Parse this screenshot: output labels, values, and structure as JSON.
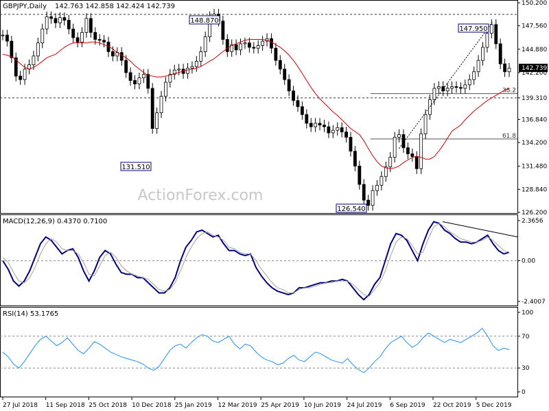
{
  "chart_data": [
    {
      "type": "candlestick",
      "panel": "price",
      "title": "GBPJPY,Daily",
      "ohlc_header": "142.763 142.858 142.424 142.739",
      "ylim": [
        126.2,
        150.2
      ],
      "yticks": [
        "150.200",
        "147.560",
        "144.880",
        "142.200",
        "139.310",
        "136.840",
        "134.200",
        "131.480",
        "128.840",
        "126.200"
      ],
      "last_price": "142.739",
      "watermark": "ActionForex.com",
      "levels": [
        {
          "label": "148.870",
          "value": 148.87,
          "style": "dashed"
        },
        {
          "label": "139.310",
          "value": 139.31,
          "style": "dashed"
        },
        {
          "label": "38.2",
          "value": 139.8,
          "style": "fib"
        },
        {
          "label": "61.8",
          "value": 134.6,
          "style": "fib"
        }
      ],
      "annotations": [
        "148.870",
        "131.510",
        "147.950",
        "126.540"
      ],
      "series": [
        {
          "name": "price",
          "values": [
            146.5,
            145.8,
            143.9,
            141.8,
            141.4,
            142.6,
            143.1,
            144.1,
            145.6,
            147.2,
            148.6,
            148.4,
            147.9,
            148.5,
            148.2,
            147.2,
            146.2,
            145.7,
            146.8,
            148.4,
            146.8,
            146.0,
            145.9,
            145.7,
            144.6,
            144.1,
            144.5,
            143.6,
            142.2,
            141.3,
            140.9,
            141.6,
            142.0,
            140.4,
            135.8,
            137.6,
            139.5,
            141.1,
            142.0,
            142.5,
            142.6,
            142.1,
            142.7,
            142.9,
            143.5,
            144.6,
            146.3,
            148.6,
            148.9,
            148.1,
            146.0,
            144.6,
            145.4,
            144.8,
            145.5,
            145.6,
            145.1,
            145.0,
            145.3,
            145.8,
            146.1,
            145.0,
            143.6,
            142.6,
            141.4,
            140.1,
            139.0,
            138.3,
            137.4,
            136.4,
            136.0,
            136.4,
            136.2,
            136.0,
            135.3,
            135.6,
            135.9,
            135.4,
            134.8,
            133.2,
            131.5,
            129.4,
            127.6,
            127.0,
            128.7,
            129.3,
            130.3,
            131.4,
            132.5,
            134.8,
            135.1,
            133.6,
            132.9,
            132.6,
            131.2,
            135.2,
            137.4,
            139.1,
            140.4,
            140.6,
            140.1,
            140.4,
            140.6,
            140.5,
            140.4,
            140.8,
            141.4,
            142.3,
            143.6,
            145.1,
            146.7,
            147.7,
            145.5,
            143.2,
            142.3,
            142.7
          ]
        },
        {
          "name": "MA",
          "values": [
            144.3,
            144.2,
            144.0,
            143.7,
            143.2,
            142.8,
            142.6,
            142.8,
            143.1,
            143.5,
            143.9,
            144.3,
            144.7,
            145.1,
            145.4,
            145.6,
            145.6,
            145.6,
            145.6,
            145.7,
            145.7,
            145.6,
            145.4,
            145.2,
            144.9,
            144.5,
            144.2,
            143.9,
            143.5,
            143.0,
            142.6,
            142.2,
            141.9,
            141.7,
            141.7,
            141.8,
            141.9,
            142.1,
            142.2,
            142.4,
            142.5,
            142.6,
            142.7,
            142.9,
            143.2,
            143.5,
            143.8,
            144.2,
            144.6,
            145.0,
            145.3,
            145.5,
            145.7,
            145.9,
            146.0,
            146.0,
            146.0,
            145.9,
            145.7,
            145.4,
            145.1,
            144.7,
            144.2,
            143.6,
            142.9,
            142.1,
            141.3,
            140.5,
            139.8,
            139.2,
            138.7,
            138.2,
            137.7,
            137.3,
            136.8,
            136.3,
            135.8,
            135.1,
            134.4,
            133.5,
            132.7,
            132.0,
            131.5,
            131.3,
            131.2,
            131.3,
            131.5,
            131.9,
            132.2,
            132.5,
            132.6,
            132.5,
            132.3,
            132.3,
            132.6,
            133.2,
            133.9,
            134.7,
            135.5,
            136.2,
            136.8,
            137.3,
            137.8,
            138.2,
            138.6,
            139.0,
            139.3,
            139.6,
            139.9,
            140.2,
            140.4
          ]
        }
      ]
    },
    {
      "type": "line",
      "panel": "macd",
      "title": "MACD(12,26,9) 0.4370 0.7100",
      "ylim": [
        -2.4007,
        2.3656
      ],
      "yticks": [
        "2.3656",
        "0.00",
        "-2.4007"
      ],
      "series": [
        {
          "name": "MACD",
          "values": [
            0.0,
            -0.5,
            -1.2,
            -1.5,
            -1.2,
            -0.6,
            0.2,
            1.0,
            1.4,
            1.2,
            0.8,
            0.4,
            0.6,
            0.7,
            0.2,
            -0.6,
            -1.2,
            -0.6,
            0.2,
            0.6,
            0.4,
            -0.2,
            -0.7,
            -0.8,
            -0.8,
            -1.0,
            -1.0,
            -1.3,
            -1.6,
            -1.9,
            -1.9,
            -1.6,
            -1.0,
            0.0,
            0.8,
            1.2,
            1.7,
            1.8,
            1.6,
            1.4,
            1.5,
            1.0,
            0.6,
            0.6,
            0.4,
            0.3,
            0.4,
            -0.4,
            -0.9,
            -1.3,
            -1.6,
            -1.8,
            -1.9,
            -2.0,
            -1.9,
            -1.6,
            -1.6,
            -1.5,
            -1.4,
            -1.3,
            -1.3,
            -1.2,
            -1.2,
            -1.1,
            -1.2,
            -1.6,
            -2.0,
            -2.3,
            -2.0,
            -1.4,
            -1.0,
            0.0,
            1.0,
            1.6,
            1.5,
            1.2,
            0.6,
            0.0,
            1.0,
            1.8,
            2.3,
            2.2,
            1.8,
            1.6,
            1.3,
            1.1,
            1.1,
            1.0,
            1.1,
            1.3,
            1.5,
            1.0,
            0.6,
            0.4,
            0.5
          ]
        },
        {
          "name": "Signal",
          "values": [
            0.2,
            -0.1,
            -0.7,
            -1.2,
            -1.3,
            -1.0,
            -0.4,
            0.4,
            1.0,
            1.3,
            1.1,
            0.7,
            0.6,
            0.6,
            0.4,
            -0.1,
            -0.8,
            -0.9,
            -0.3,
            0.3,
            0.5,
            0.2,
            -0.3,
            -0.6,
            -0.8,
            -0.9,
            -1.0,
            -1.1,
            -1.4,
            -1.7,
            -1.8,
            -1.7,
            -1.3,
            -0.6,
            0.2,
            0.8,
            1.3,
            1.6,
            1.7,
            1.5,
            1.4,
            1.2,
            0.8,
            0.7,
            0.5,
            0.4,
            0.4,
            0.0,
            -0.5,
            -0.9,
            -1.3,
            -1.6,
            -1.7,
            -1.9,
            -1.9,
            -1.7,
            -1.6,
            -1.6,
            -1.5,
            -1.4,
            -1.3,
            -1.3,
            -1.2,
            -1.2,
            -1.2,
            -1.4,
            -1.7,
            -2.0,
            -2.1,
            -1.7,
            -1.3,
            -0.6,
            0.3,
            1.1,
            1.4,
            1.3,
            0.9,
            0.4,
            0.5,
            1.3,
            2.0,
            2.2,
            2.0,
            1.7,
            1.5,
            1.3,
            1.2,
            1.1,
            1.1,
            1.2,
            1.4,
            1.2,
            0.9,
            0.6,
            0.5
          ]
        }
      ],
      "trendline": "bearish divergence line from Oct 2019 peak"
    },
    {
      "type": "line",
      "panel": "rsi",
      "title": "RSI(14) 53.1765",
      "ylim": [
        0,
        100
      ],
      "yticks": [
        "100",
        "70",
        "30",
        "0"
      ],
      "levels": [
        70,
        30
      ],
      "series": [
        {
          "name": "RSI",
          "values": [
            50,
            44,
            35,
            30,
            38,
            48,
            58,
            66,
            70,
            64,
            58,
            62,
            68,
            60,
            52,
            48,
            55,
            63,
            60,
            55,
            50,
            47,
            44,
            42,
            40,
            38,
            35,
            30,
            27,
            32,
            42,
            52,
            58,
            60,
            55,
            62,
            68,
            72,
            70,
            64,
            62,
            66,
            70,
            60,
            54,
            60,
            58,
            50,
            44,
            40,
            38,
            34,
            36,
            42,
            46,
            40,
            38,
            44,
            50,
            48,
            44,
            40,
            38,
            36,
            42,
            34,
            28,
            24,
            30,
            38,
            44,
            54,
            62,
            66,
            70,
            62,
            56,
            60,
            68,
            74,
            70,
            66,
            62,
            66,
            64,
            62,
            66,
            70,
            74,
            80,
            70,
            58,
            52,
            55,
            53
          ]
        }
      ]
    }
  ],
  "xaxis": {
    "labels": [
      "27 Jul 2018",
      "11 Sep 2018",
      "25 Oct 2018",
      "10 Dec 2018",
      "25 Jan 2019",
      "12 Mar 2019",
      "25 Apr 2019",
      "10 Jun 2019",
      "24 Jul 2019",
      "6 Sep 2019",
      "22 Oct 2019",
      "5 Dec 2019"
    ]
  },
  "colors": {
    "candle": "#000000",
    "ma": "#d40000",
    "macd": "#000080",
    "signal": "#a0a0a0",
    "rsi": "#1e90ff",
    "grid": "#888888",
    "last_price_bg": "#000000"
  }
}
